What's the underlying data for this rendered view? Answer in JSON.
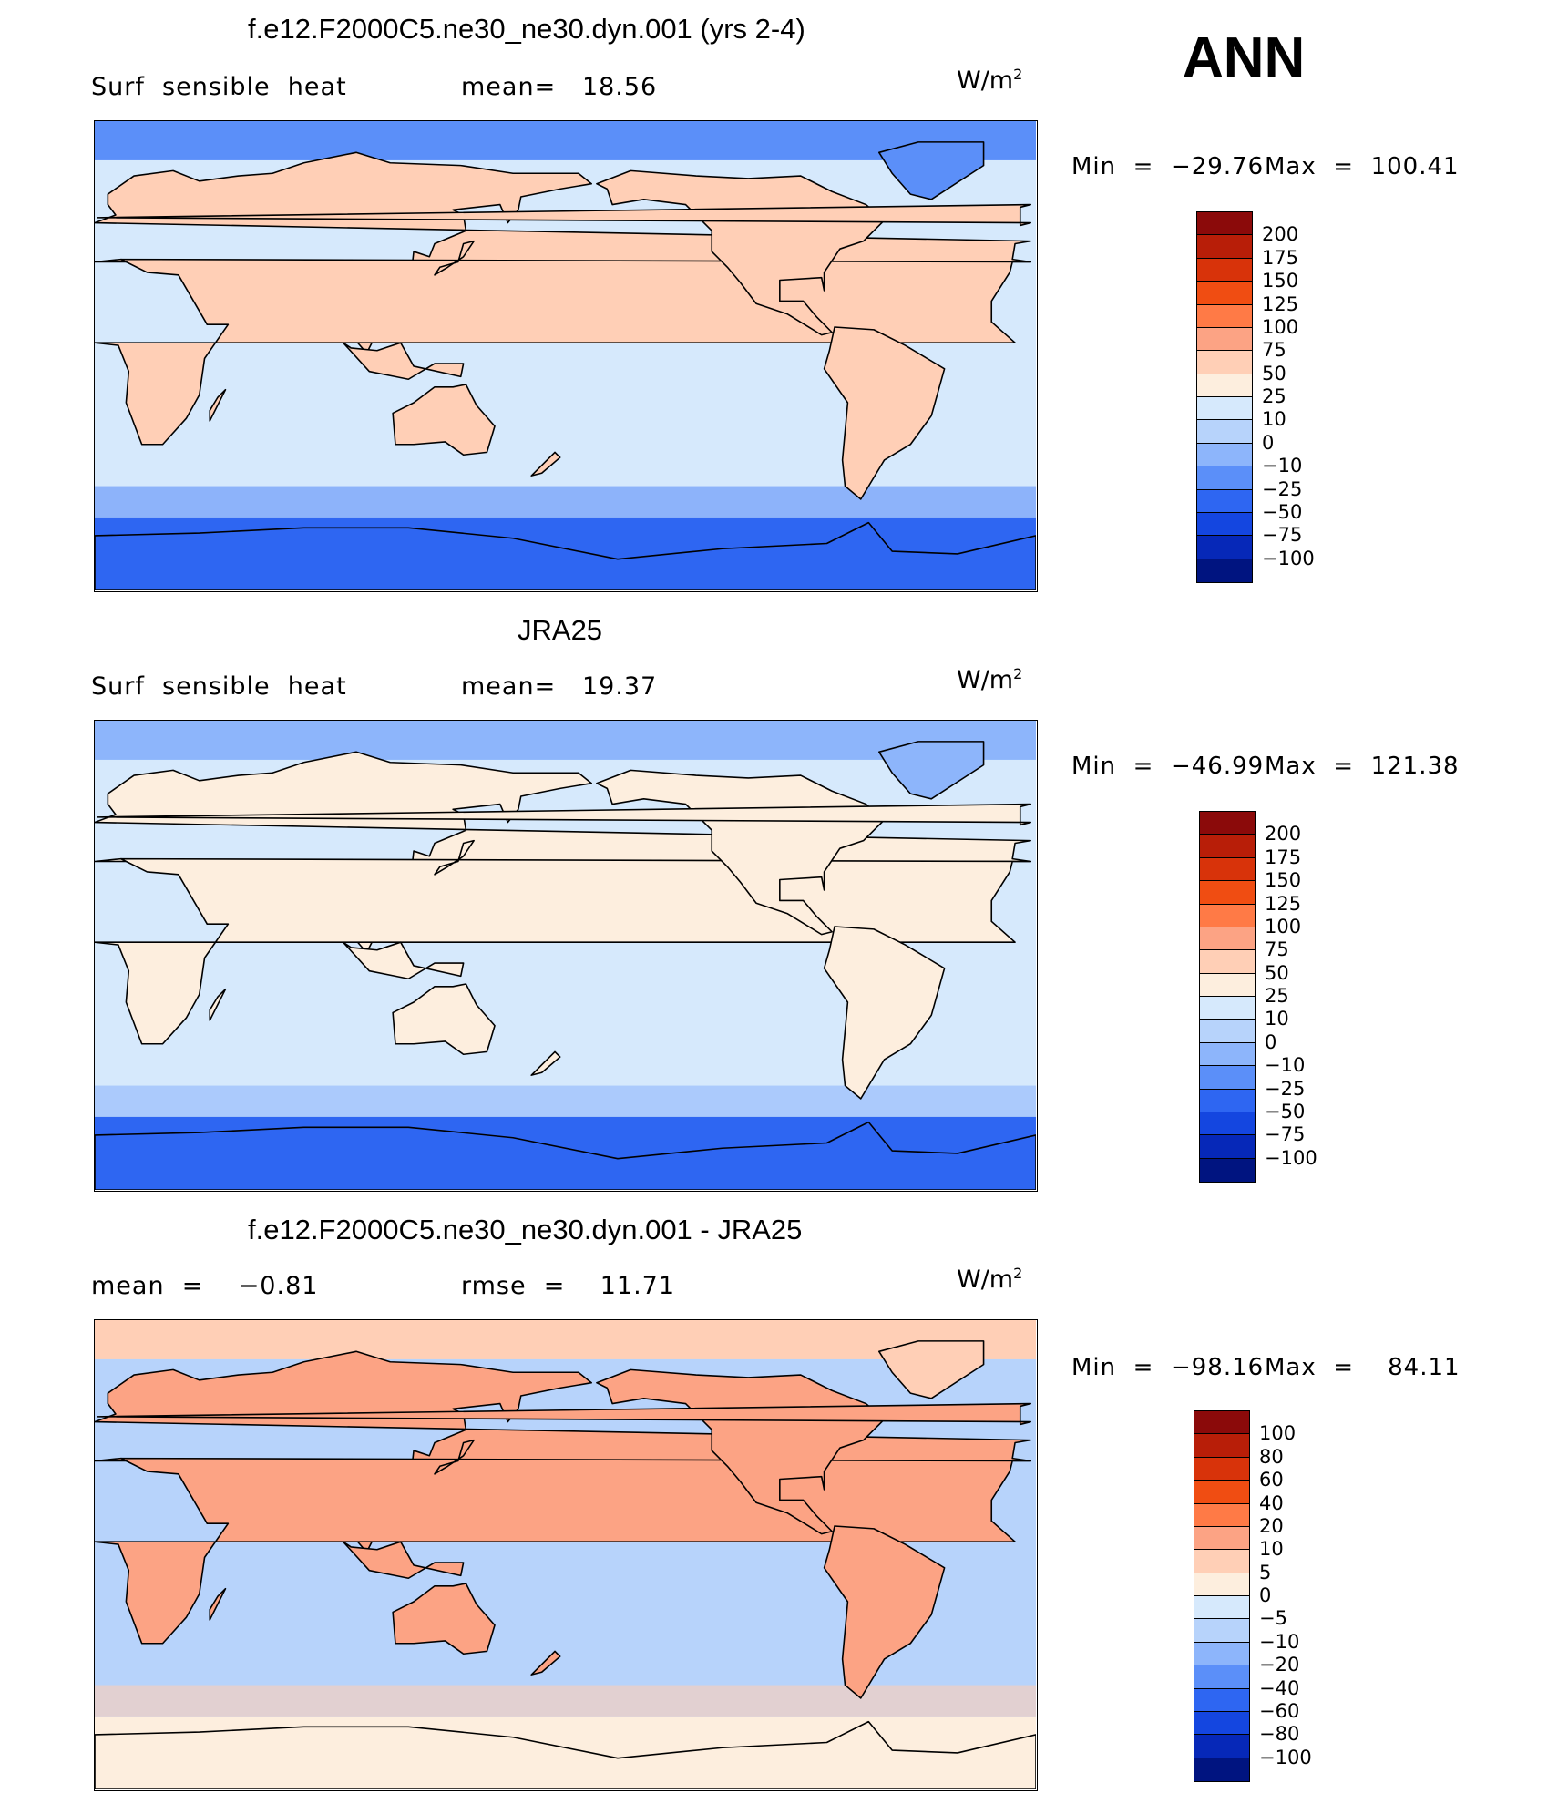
{
  "season": "ANN",
  "chart_data": [
    {
      "type": "heatmap",
      "title": "f.e12.F2000C5.ne30_ne30.dyn.001 (yrs 2-4)",
      "subtitle_left": "Surf  sensible  heat",
      "stat1": "mean=   18.56",
      "stat2": "",
      "units": "W/m",
      "units_exp": "2",
      "min_label": "Min  =  −29.76",
      "max_label": "Max  =  100.41",
      "levels": [
        "200",
        "175",
        "150",
        "125",
        "100",
        "75",
        "50",
        "25",
        "10",
        "0",
        "−10",
        "−25",
        "−50",
        "−75",
        "−100"
      ],
      "colors": [
        "#8b0a0a",
        "#b81e08",
        "#d8330a",
        "#f04d12",
        "#ff7a46",
        "#fca384",
        "#ffcfb6",
        "#fdeede",
        "#d6e9fc",
        "#b7d3fb",
        "#8db5fb",
        "#5b8ff9",
        "#2e66f2",
        "#1446e0",
        "#0628b8",
        "#001480"
      ],
      "ocean_color": "#d6e9fc",
      "land_color": "#ffcfb6",
      "polar_color": "#2e66f2",
      "arctic_color": "#5b8ff9"
    },
    {
      "type": "heatmap",
      "title": "JRA25",
      "subtitle_left": "Surf  sensible  heat",
      "stat1": "mean=   19.37",
      "stat2": "",
      "units": "W/m",
      "units_exp": "2",
      "min_label": "Min  =  −46.99",
      "max_label": "Max  =  121.38",
      "levels": [
        "200",
        "175",
        "150",
        "125",
        "100",
        "75",
        "50",
        "25",
        "10",
        "0",
        "−10",
        "−25",
        "−50",
        "−75",
        "−100"
      ],
      "colors": [
        "#8b0a0a",
        "#b81e08",
        "#d8330a",
        "#f04d12",
        "#ff7a46",
        "#fca384",
        "#ffcfb6",
        "#fdeede",
        "#d6e9fc",
        "#b7d3fb",
        "#8db5fb",
        "#5b8ff9",
        "#2e66f2",
        "#1446e0",
        "#0628b8",
        "#001480"
      ],
      "ocean_color": "#d6e9fc",
      "land_color": "#fdeede",
      "polar_color": "#2e66f2",
      "arctic_color": "#8db5fb"
    },
    {
      "type": "heatmap",
      "title": "f.e12.F2000C5.ne30_ne30.dyn.001 - JRA25",
      "subtitle_left": "mean  =    −0.81",
      "stat1": "rmse  =    11.71",
      "stat2": "",
      "units": "W/m",
      "units_exp": "2",
      "min_label": "Min  =  −98.16",
      "max_label": "Max  =    84.11",
      "levels": [
        "100",
        "80",
        "60",
        "40",
        "20",
        "10",
        "5",
        "0",
        "−5",
        "−10",
        "−20",
        "−40",
        "−60",
        "−80",
        "−100"
      ],
      "colors": [
        "#8b0a0a",
        "#b81e08",
        "#d8330a",
        "#f04d12",
        "#ff7a46",
        "#fca384",
        "#ffcfb6",
        "#fdeede",
        "#d6e9fc",
        "#b7d3fb",
        "#8db5fb",
        "#5b8ff9",
        "#2e66f2",
        "#1446e0",
        "#0628b8",
        "#001480"
      ],
      "ocean_color": "#b7d3fb",
      "land_color": "#fca384",
      "polar_color": "#fdeede",
      "arctic_color": "#ffcfb6"
    }
  ]
}
